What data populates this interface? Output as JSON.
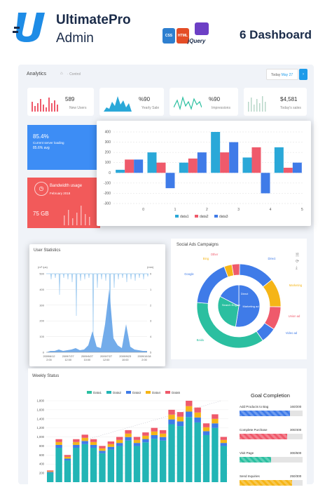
{
  "brand": {
    "name": "UltimatePro",
    "sub": "Admin",
    "tagline": "6 Dashboard",
    "jquery": "jQuery"
  },
  "tech_badges": [
    {
      "name": "CSS",
      "color": "#2e7fcf"
    },
    {
      "name": "HTML",
      "color": "#e44d26"
    }
  ],
  "topbar": {
    "title": "Analytics",
    "crumb": "Control",
    "date_label": "Today",
    "date_value": "May 27"
  },
  "kpis": [
    {
      "value": "589",
      "label": "New Users"
    },
    {
      "value": "%90",
      "label": "Yearly Sale"
    },
    {
      "value": "%90",
      "label": "Impressions"
    },
    {
      "value": "$4,581",
      "label": "Today's sales"
    }
  ],
  "server": {
    "percent": "85.4%",
    "label": "Current server loading",
    "avg": "85.6% avg"
  },
  "bandwidth": {
    "title": "Bandwidth usage",
    "date": "February 2018",
    "value": "75 GB"
  },
  "main_chart": {
    "type": "bar",
    "categories": [
      "0",
      "1",
      "2",
      "3",
      "4",
      "5"
    ],
    "series": [
      {
        "name": "data1",
        "color": "#2aa8d8",
        "values": [
          30,
          200,
          100,
          400,
          150,
          250
        ]
      },
      {
        "name": "data2",
        "color": "#ef5a6b",
        "values": [
          130,
          100,
          140,
          200,
          250,
          50
        ]
      },
      {
        "name": "data3",
        "color": "#3f7be8",
        "values": [
          130,
          -150,
          200,
          300,
          -200,
          100
        ]
      }
    ],
    "ylim": [
      -300,
      400
    ],
    "yticks": [
      "400",
      "300",
      "200",
      "100",
      "0",
      "-100",
      "-200",
      "-300"
    ]
  },
  "user_stats": {
    "title": "User Statistics",
    "left_unit": "(m³ /μs)",
    "right_unit": "(mm)",
    "left_ticks": [
      "500",
      "400",
      "300",
      "200",
      "100",
      "0"
    ],
    "right_ticks": [
      "0",
      "1",
      "2",
      "3",
      "4",
      "5"
    ],
    "x_labels": [
      "2009/6/12\n2:00",
      "2009/7/27\n12:00",
      "2009/6/27\n10:00",
      "2009/7/27\n12:00",
      "2009/9/23\n10:00",
      "2009/10/18\n2:00"
    ]
  },
  "social": {
    "title": "Social Ads Campaigns",
    "outer": [
      {
        "label": "Direct",
        "color": "#3f7be8"
      },
      {
        "label": "Marketing",
        "color": "#f5b517"
      },
      {
        "label": "Union ad",
        "color": "#ef5a6b"
      },
      {
        "label": "Video ad",
        "color": "#3f7be8"
      },
      {
        "label": "Baidu",
        "color": "#2bbfa0"
      },
      {
        "label": "Google",
        "color": "#3f7be8"
      },
      {
        "label": "Bing",
        "color": "#f5b517"
      },
      {
        "label": "Other",
        "color": "#ef5a6b"
      }
    ],
    "inner": [
      {
        "label": "Direct"
      },
      {
        "label": "Search Engine"
      },
      {
        "label": "Marketing ad"
      }
    ]
  },
  "weekly": {
    "title": "Weekly Status",
    "legend": [
      {
        "name": "Data1",
        "color": "#2bbfa0"
      },
      {
        "name": "Data2",
        "color": "#22b5b5"
      },
      {
        "name": "Data3",
        "color": "#3f7be8"
      },
      {
        "name": "Data4",
        "color": "#f5b517"
      },
      {
        "name": "Data5",
        "color": "#ef5a6b"
      }
    ],
    "yticks": [
      "1,800",
      "1,600",
      "1,400",
      "1,200",
      "1,000",
      "800",
      "600",
      "400",
      "200"
    ],
    "chart_data": {
      "type": "bar",
      "ylim": [
        0,
        1800
      ],
      "values": [
        260,
        950,
        600,
        950,
        1050,
        950,
        800,
        900,
        1000,
        1150,
        1000,
        1100,
        1200,
        1150,
        1600,
        1550,
        1800,
        1650,
        1300,
        1500,
        1000
      ]
    }
  },
  "goal": {
    "title": "Goal Completion",
    "items": [
      {
        "label": "Add Products to Bag",
        "value": "160/200",
        "color": "#3f7be8",
        "progress": 0.8
      },
      {
        "label": "Complete Purchase",
        "value": "300/400",
        "color": "#ef5a6b",
        "progress": 0.75
      },
      {
        "label": "Visit Page",
        "value": "300/600",
        "color": "#2bbfa0",
        "progress": 0.5
      },
      {
        "label": "Send Inquiries",
        "value": "250/300",
        "color": "#f5b517",
        "progress": 0.83
      }
    ]
  }
}
